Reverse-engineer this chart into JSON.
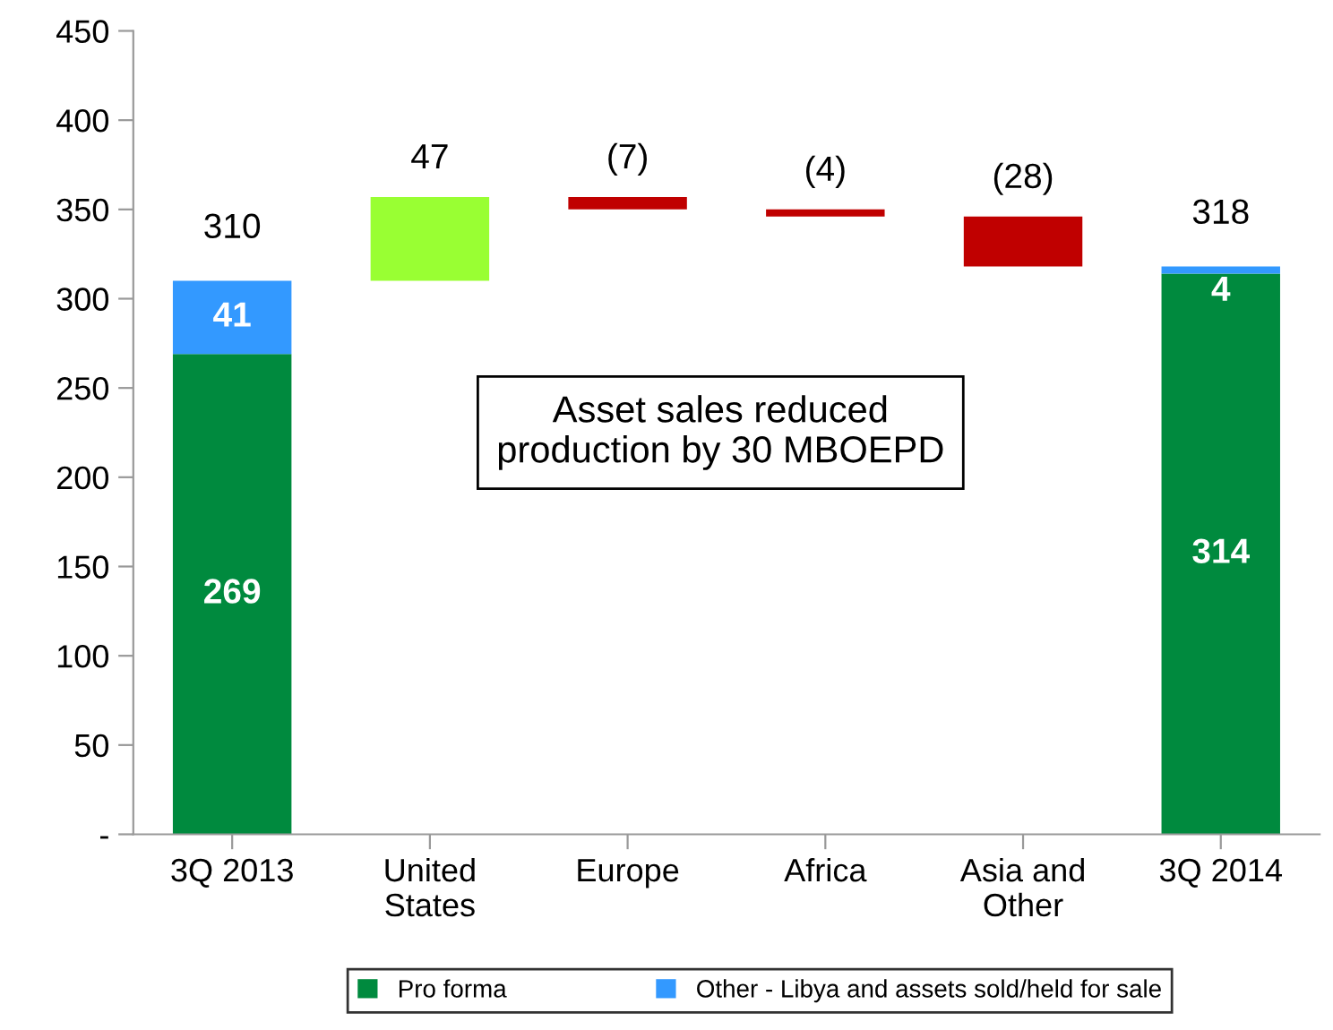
{
  "chart_data": {
    "type": "bar",
    "stacked": true,
    "categories": [
      "3Q 2013",
      "United\nStates",
      "Europe",
      "Africa",
      "Asia and\nOther",
      "3Q 2014"
    ],
    "series": [
      {
        "name": "Pro forma",
        "color": "#008a3e",
        "values": [
          269,
          null,
          null,
          null,
          null,
          314
        ],
        "value_labels": [
          "269",
          null,
          null,
          null,
          null,
          "314"
        ]
      },
      {
        "name": "Other - Libya and assets sold/held for sale",
        "color": "#3399ff",
        "values": [
          41,
          null,
          null,
          null,
          null,
          4
        ],
        "value_labels": [
          "41",
          null,
          null,
          null,
          null,
          "4"
        ]
      },
      {
        "colors": [
          null,
          "#99ff33",
          "#c00000",
          "#c00000",
          "#c00000",
          null
        ],
        "values": [
          null,
          47,
          -7,
          -4,
          -28,
          null
        ],
        "base": [
          null,
          310,
          357,
          350,
          346,
          null
        ],
        "value_labels": [
          null,
          "47",
          "(7)",
          "(4)",
          "(28)",
          null
        ]
      }
    ],
    "totals": [
      "310",
      null,
      null,
      null,
      null,
      "318"
    ],
    "ylim": [
      0,
      450
    ],
    "yticks": [
      {
        "value": 0,
        "label": "-"
      },
      50,
      100,
      150,
      200,
      250,
      300,
      350,
      400,
      450
    ],
    "annotations": [
      "Asset sales reduced\nproduction by 30 MBOEPD"
    ],
    "grid": false,
    "legend": "bottom"
  }
}
